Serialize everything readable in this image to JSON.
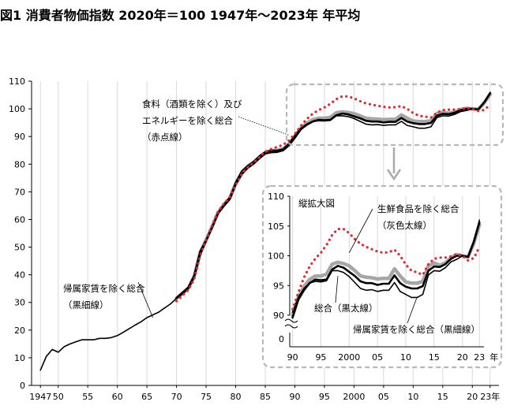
{
  "title": "図1 消費者物価指数 2020年＝100 1947年～2023年 年平均",
  "chart_data": {
    "type": "line",
    "title": "図1 消費者物価指数 2020年＝100 1947年～2023年 年平均",
    "xlabel": "",
    "ylabel": "",
    "x_unit": "年",
    "xlim": [
      1947,
      2023
    ],
    "ylim": [
      0,
      110
    ],
    "grid": "vertical",
    "x_tick_labels": [
      {
        "year": 1947,
        "label": "1947"
      },
      {
        "year": 1950,
        "label": "50"
      },
      {
        "year": 1955,
        "label": "55"
      },
      {
        "year": 1960,
        "label": "60"
      },
      {
        "year": 1965,
        "label": "65"
      },
      {
        "year": 1970,
        "label": "70"
      },
      {
        "year": 1975,
        "label": "75"
      },
      {
        "year": 1980,
        "label": "80"
      },
      {
        "year": 1985,
        "label": "85"
      },
      {
        "year": 1990,
        "label": "90"
      },
      {
        "year": 1995,
        "label": "95"
      },
      {
        "year": 2000,
        "label": "2000"
      },
      {
        "year": 2005,
        "label": "05"
      },
      {
        "year": 2010,
        "label": "10"
      },
      {
        "year": 2015,
        "label": "15"
      },
      {
        "year": 2020,
        "label": "20"
      },
      {
        "year": 2023,
        "label": "23年"
      }
    ],
    "y_ticks": [
      0,
      10,
      20,
      30,
      40,
      50,
      60,
      70,
      80,
      90,
      100,
      110
    ],
    "series": [
      {
        "id": "excl_imputed_rent",
        "label": "帰属家賃を除く総合\n（黒細線）",
        "style": "thin-black",
        "x": [
          1947,
          1948,
          1949,
          1950,
          1951,
          1952,
          1953,
          1954,
          1955,
          1956,
          1957,
          1958,
          1959,
          1960,
          1961,
          1962,
          1963,
          1964,
          1965,
          1966,
          1967,
          1968,
          1969,
          1970,
          1971,
          1972,
          1973,
          1974,
          1975,
          1976,
          1977,
          1978,
          1979,
          1980,
          1981,
          1982,
          1983,
          1984,
          1985,
          1986,
          1987,
          1988,
          1989,
          1990,
          1991,
          1992,
          1993,
          1994,
          1995,
          1996,
          1997,
          1998,
          1999,
          2000,
          2001,
          2002,
          2003,
          2004,
          2005,
          2006,
          2007,
          2008,
          2009,
          2010,
          2011,
          2012,
          2013,
          2014,
          2015,
          2016,
          2017,
          2018,
          2019,
          2020,
          2021,
          2022,
          2023
        ],
        "values": [
          5.5,
          10.5,
          13,
          12,
          14,
          15,
          15.8,
          16.5,
          16.5,
          16.5,
          17,
          17,
          17.3,
          18,
          19.2,
          20.5,
          21.8,
          23,
          24.5,
          25.5,
          26.5,
          28,
          29.5,
          31.5,
          33,
          35,
          39,
          47,
          52,
          57,
          62.5,
          65.5,
          68,
          73.5,
          77.5,
          79.5,
          81,
          83,
          84.5,
          85,
          85,
          85.5,
          87.5,
          90.5,
          93,
          94.5,
          95.4,
          95.7,
          95.6,
          95.8,
          97.5,
          97.5,
          97.2,
          96.5,
          95.5,
          94.5,
          94.2,
          94.3,
          94,
          94.2,
          94.2,
          95.5,
          94,
          93.5,
          93,
          93,
          93.5,
          96.8,
          97.5,
          97.4,
          98,
          99,
          99.4,
          100,
          99.9,
          102.5,
          106
        ]
      },
      {
        "id": "total",
        "label": "総合（黒太線）",
        "style": "thick-black",
        "x": [
          1970,
          1971,
          1972,
          1973,
          1974,
          1975,
          1976,
          1977,
          1978,
          1979,
          1980,
          1981,
          1982,
          1983,
          1984,
          1985,
          1986,
          1987,
          1988,
          1989,
          1990,
          1991,
          1992,
          1993,
          1994,
          1995,
          1996,
          1997,
          1998,
          1999,
          2000,
          2001,
          2002,
          2003,
          2004,
          2005,
          2006,
          2007,
          2008,
          2009,
          2010,
          2011,
          2012,
          2013,
          2014,
          2015,
          2016,
          2017,
          2018,
          2019,
          2020,
          2021,
          2022,
          2023
        ],
        "values": [
          31.6,
          33.5,
          35.4,
          39.7,
          48.3,
          52.5,
          57.1,
          62.2,
          64.9,
          67.3,
          72.7,
          76.3,
          78.6,
          80.1,
          82.1,
          83.8,
          84.3,
          84.4,
          85,
          86.8,
          89.6,
          92.6,
          94.2,
          95.4,
          96,
          95.9,
          96,
          97.7,
          98.3,
          98,
          97.3,
          96.6,
          95.7,
          95.4,
          95.4,
          95.1,
          95.3,
          95.3,
          96.7,
          95.4,
          94.8,
          94.5,
          94.5,
          94.9,
          97.5,
          98.2,
          98.1,
          98.6,
          99.5,
          100,
          100,
          99.8,
          102.3,
          105.6
        ]
      },
      {
        "id": "excl_fresh_food",
        "label": "生鮮食品を除く総合\n（灰色太線）",
        "style": "thick-gray",
        "x": [
          1970,
          1971,
          1972,
          1973,
          1974,
          1975,
          1976,
          1977,
          1978,
          1979,
          1980,
          1981,
          1982,
          1983,
          1984,
          1985,
          1986,
          1987,
          1988,
          1989,
          1990,
          1991,
          1992,
          1993,
          1994,
          1995,
          1996,
          1997,
          1998,
          1999,
          2000,
          2001,
          2002,
          2003,
          2004,
          2005,
          2006,
          2007,
          2008,
          2009,
          2010,
          2011,
          2012,
          2013,
          2014,
          2015,
          2016,
          2017,
          2018,
          2019,
          2020,
          2021,
          2022,
          2023
        ],
        "values": [
          31.5,
          33.3,
          35.2,
          39.5,
          48.2,
          52.6,
          57.4,
          62.5,
          65.3,
          67.8,
          73,
          76.7,
          79,
          80.6,
          82.5,
          84.2,
          84.8,
          85,
          85.5,
          87.3,
          90,
          93,
          94.8,
          96,
          96.6,
          96.6,
          96.9,
          98.6,
          98.9,
          98.7,
          98.3,
          97.5,
          96.6,
          96.4,
          96.3,
          96.1,
          96.2,
          96.2,
          97.8,
          96.6,
          95.6,
          95.4,
          95.4,
          95.7,
          98.3,
          98.8,
          98.4,
          98.8,
          99.7,
          100.2,
          100,
          99.8,
          102.1,
          105.2
        ]
      },
      {
        "id": "excl_food_energy",
        "label": "食料（酒類を除く）及び\nエネルギーを除く総合\n（赤点線）",
        "style": "red-dotted",
        "x": [
          1970,
          1971,
          1972,
          1973,
          1974,
          1975,
          1976,
          1977,
          1978,
          1979,
          1980,
          1981,
          1982,
          1983,
          1984,
          1985,
          1986,
          1987,
          1988,
          1989,
          1990,
          1991,
          1992,
          1993,
          1994,
          1995,
          1996,
          1997,
          1998,
          1999,
          2000,
          2001,
          2002,
          2003,
          2004,
          2005,
          2006,
          2007,
          2008,
          2009,
          2010,
          2011,
          2012,
          2013,
          2014,
          2015,
          2016,
          2017,
          2018,
          2019,
          2020,
          2021,
          2022,
          2023
        ],
        "values": [
          30.5,
          32.5,
          34.5,
          38.5,
          47,
          52.5,
          57.7,
          62.8,
          65.7,
          68,
          72.5,
          76.3,
          78.8,
          80.5,
          82.5,
          84.5,
          85.5,
          86.2,
          87,
          88.5,
          91,
          93.8,
          96.3,
          98.2,
          99.5,
          100.5,
          101.8,
          103.5,
          104.5,
          104.5,
          103.8,
          102.8,
          102,
          101.5,
          101.1,
          100.7,
          100.5,
          100.6,
          101,
          100,
          98.5,
          97.5,
          97.2,
          96.8,
          98.6,
          99.5,
          99.7,
          99.7,
          99.9,
          100.3,
          100,
          99.2,
          99.6,
          101.5
        ]
      }
    ],
    "inset": {
      "title": "縦拡大図",
      "xlim": [
        1990,
        2023
      ],
      "ylim": [
        90,
        110
      ],
      "x_unit": "年",
      "x_tick_labels": [
        {
          "year": 1990,
          "label": "90"
        },
        {
          "year": 1995,
          "label": "95"
        },
        {
          "year": 2000,
          "label": "2000"
        },
        {
          "year": 2005,
          "label": "05"
        },
        {
          "year": 2010,
          "label": "10"
        },
        {
          "year": 2015,
          "label": "15"
        },
        {
          "year": 2020,
          "label": "20"
        },
        {
          "year": 2023,
          "label": "23"
        }
      ],
      "y_ticks": [
        90,
        95,
        100,
        105,
        110
      ],
      "y_zero_label": "0"
    }
  }
}
